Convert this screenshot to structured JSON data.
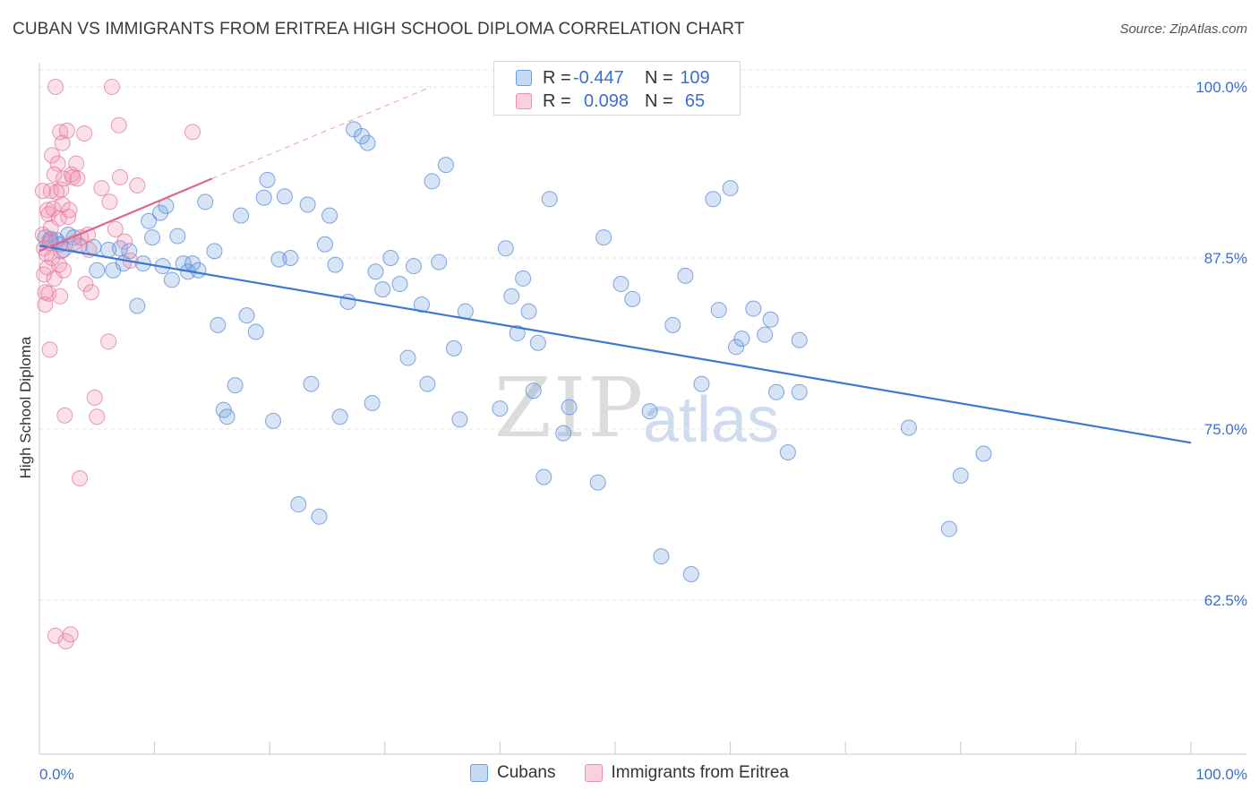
{
  "title": "CUBAN VS IMMIGRANTS FROM ERITREA HIGH SCHOOL DIPLOMA CORRELATION CHART",
  "source": "Source: ZipAtlas.com",
  "watermark": {
    "a": "ZIP",
    "b": "atlas"
  },
  "legend_top": [
    {
      "r_label": "R =",
      "r_value": "-0.447",
      "n_label": "N =",
      "n_value": "109",
      "color": "#6f9fe0"
    },
    {
      "r_label": "R =",
      "r_value": "0.098",
      "n_label": "N =",
      "n_value": "65",
      "color": "#ef8fb0"
    }
  ],
  "bottom_legend": [
    {
      "label": "Cubans",
      "color": "#6f9fe0"
    },
    {
      "label": "Immigrants from Eritrea",
      "color": "#ef8fb0"
    }
  ],
  "chart_data": {
    "type": "scatter",
    "ylabel": "High School Diploma",
    "xlabel": "",
    "x_tick_labels": [
      "0.0%",
      "100.0%"
    ],
    "y_tick_labels": [
      "100.0%",
      "87.5%",
      "75.0%",
      "62.5%"
    ],
    "y_ticks": [
      100.0,
      87.5,
      75.0,
      62.5
    ],
    "xlim": [
      0,
      100
    ],
    "ylim": [
      51.5,
      101.5
    ],
    "grid": true,
    "series": [
      {
        "name": "Cubans",
        "color": "#6f9fe0",
        "stroke": "#5a8ad6",
        "trend": {
          "x": [
            0,
            100
          ],
          "y": [
            88.4,
            74.0
          ],
          "color": "#3a78d4"
        },
        "points": [
          [
            0.5,
            89.0
          ],
          [
            1.0,
            88.9
          ],
          [
            1.5,
            88.8
          ],
          [
            1.8,
            88.5
          ],
          [
            2.5,
            89.2
          ],
          [
            3.0,
            89.0
          ],
          [
            3.5,
            88.4
          ],
          [
            4.7,
            88.3
          ],
          [
            5.0,
            86.6
          ],
          [
            6.0,
            88.1
          ],
          [
            6.4,
            86.6
          ],
          [
            7.0,
            88.2
          ],
          [
            7.3,
            87.1
          ],
          [
            7.8,
            88.0
          ],
          [
            8.5,
            84.0
          ],
          [
            9.0,
            87.1
          ],
          [
            9.5,
            90.2
          ],
          [
            9.8,
            89.0
          ],
          [
            10.5,
            90.8
          ],
          [
            10.7,
            86.9
          ],
          [
            11.0,
            91.3
          ],
          [
            11.5,
            85.9
          ],
          [
            12.0,
            89.1
          ],
          [
            12.5,
            87.1
          ],
          [
            12.9,
            86.5
          ],
          [
            13.3,
            87.1
          ],
          [
            13.8,
            86.6
          ],
          [
            14.4,
            91.6
          ],
          [
            15.2,
            88.0
          ],
          [
            15.5,
            82.6
          ],
          [
            16.0,
            76.4
          ],
          [
            16.3,
            75.9
          ],
          [
            17.0,
            78.2
          ],
          [
            17.5,
            90.6
          ],
          [
            18.0,
            83.3
          ],
          [
            18.8,
            82.1
          ],
          [
            19.5,
            91.9
          ],
          [
            19.8,
            93.2
          ],
          [
            20.3,
            75.6
          ],
          [
            20.8,
            87.4
          ],
          [
            21.3,
            92.0
          ],
          [
            21.8,
            87.5
          ],
          [
            22.5,
            69.5
          ],
          [
            23.3,
            91.4
          ],
          [
            23.6,
            78.3
          ],
          [
            24.3,
            68.6
          ],
          [
            24.8,
            88.5
          ],
          [
            25.2,
            90.6
          ],
          [
            25.7,
            87.0
          ],
          [
            26.1,
            75.9
          ],
          [
            26.8,
            84.3
          ],
          [
            27.3,
            96.9
          ],
          [
            28.0,
            96.4
          ],
          [
            28.5,
            95.9
          ],
          [
            28.9,
            76.9
          ],
          [
            29.2,
            86.5
          ],
          [
            29.8,
            85.2
          ],
          [
            30.5,
            87.5
          ],
          [
            31.3,
            85.6
          ],
          [
            32.0,
            80.2
          ],
          [
            32.5,
            86.9
          ],
          [
            33.2,
            84.1
          ],
          [
            33.7,
            78.3
          ],
          [
            34.1,
            93.1
          ],
          [
            34.7,
            87.2
          ],
          [
            35.3,
            94.3
          ],
          [
            36.0,
            80.9
          ],
          [
            36.5,
            75.7
          ],
          [
            37.0,
            83.6
          ],
          [
            40.0,
            76.5
          ],
          [
            40.5,
            88.2
          ],
          [
            41.0,
            84.7
          ],
          [
            41.5,
            82.0
          ],
          [
            42.0,
            86.0
          ],
          [
            42.5,
            83.6
          ],
          [
            42.9,
            77.8
          ],
          [
            43.3,
            81.3
          ],
          [
            43.8,
            71.5
          ],
          [
            44.3,
            91.8
          ],
          [
            45.5,
            74.7
          ],
          [
            46.0,
            76.6
          ],
          [
            48.5,
            71.1
          ],
          [
            49.0,
            89.0
          ],
          [
            50.5,
            85.6
          ],
          [
            51.5,
            84.5
          ],
          [
            53.0,
            76.3
          ],
          [
            54.0,
            65.7
          ],
          [
            55.0,
            82.6
          ],
          [
            56.1,
            86.2
          ],
          [
            56.6,
            64.4
          ],
          [
            57.5,
            78.3
          ],
          [
            58.5,
            91.8
          ],
          [
            59.0,
            83.7
          ],
          [
            60.0,
            92.6
          ],
          [
            60.5,
            81.0
          ],
          [
            61.0,
            81.6
          ],
          [
            62.0,
            83.8
          ],
          [
            63.0,
            81.9
          ],
          [
            63.5,
            83.0
          ],
          [
            64.0,
            77.7
          ],
          [
            65.0,
            73.3
          ],
          [
            66.0,
            77.7
          ],
          [
            66.0,
            81.5
          ],
          [
            75.5,
            75.1
          ],
          [
            79.0,
            67.7
          ],
          [
            80.0,
            71.6
          ],
          [
            82.0,
            73.2
          ],
          [
            0.9,
            88.8
          ],
          [
            2.1,
            88.1
          ]
        ]
      },
      {
        "name": "Immigrants from Eritrea",
        "color": "#ef8fb0",
        "stroke": "#e27aa0",
        "trend": {
          "x": [
            0,
            15
          ],
          "y": [
            88.0,
            93.3
          ],
          "color": "#e0648e"
        },
        "trend_ext": {
          "x": [
            15,
            34
          ],
          "y": [
            93.3,
            100.0
          ],
          "color": "#ef9cb8"
        },
        "points": [
          [
            0.3,
            92.4
          ],
          [
            0.3,
            89.2
          ],
          [
            0.4,
            88.2
          ],
          [
            0.4,
            86.3
          ],
          [
            0.5,
            85.0
          ],
          [
            0.5,
            84.1
          ],
          [
            0.6,
            87.8
          ],
          [
            0.7,
            86.8
          ],
          [
            0.7,
            91.0
          ],
          [
            0.8,
            90.7
          ],
          [
            0.8,
            84.9
          ],
          [
            0.9,
            80.8
          ],
          [
            0.9,
            88.6
          ],
          [
            1.0,
            92.4
          ],
          [
            1.0,
            89.7
          ],
          [
            1.1,
            87.5
          ],
          [
            1.1,
            95.0
          ],
          [
            1.2,
            91.1
          ],
          [
            1.3,
            93.6
          ],
          [
            1.3,
            86.0
          ],
          [
            1.4,
            100.0
          ],
          [
            1.4,
            59.9
          ],
          [
            1.5,
            92.3
          ],
          [
            1.6,
            94.4
          ],
          [
            1.7,
            87.0
          ],
          [
            1.7,
            90.4
          ],
          [
            1.8,
            96.7
          ],
          [
            1.8,
            84.7
          ],
          [
            1.9,
            92.5
          ],
          [
            1.9,
            88.0
          ],
          [
            2.0,
            91.4
          ],
          [
            2.0,
            95.9
          ],
          [
            2.1,
            93.3
          ],
          [
            2.1,
            86.6
          ],
          [
            2.2,
            76.0
          ],
          [
            2.3,
            59.5
          ],
          [
            2.4,
            96.8
          ],
          [
            2.5,
            90.5
          ],
          [
            2.6,
            91.0
          ],
          [
            2.7,
            60.0
          ],
          [
            2.8,
            93.6
          ],
          [
            2.9,
            93.4
          ],
          [
            3.0,
            88.6
          ],
          [
            3.2,
            94.4
          ],
          [
            3.3,
            93.3
          ],
          [
            3.5,
            71.4
          ],
          [
            3.6,
            89.0
          ],
          [
            3.9,
            96.6
          ],
          [
            4.0,
            85.6
          ],
          [
            4.2,
            89.2
          ],
          [
            4.3,
            88.1
          ],
          [
            4.5,
            85.0
          ],
          [
            4.8,
            77.3
          ],
          [
            5.0,
            75.9
          ],
          [
            5.4,
            92.6
          ],
          [
            6.0,
            81.4
          ],
          [
            6.1,
            91.6
          ],
          [
            6.3,
            100.0
          ],
          [
            6.6,
            89.6
          ],
          [
            6.9,
            97.2
          ],
          [
            7.0,
            93.4
          ],
          [
            7.4,
            88.7
          ],
          [
            7.9,
            87.3
          ],
          [
            8.5,
            92.8
          ],
          [
            13.3,
            96.7
          ]
        ]
      }
    ]
  }
}
